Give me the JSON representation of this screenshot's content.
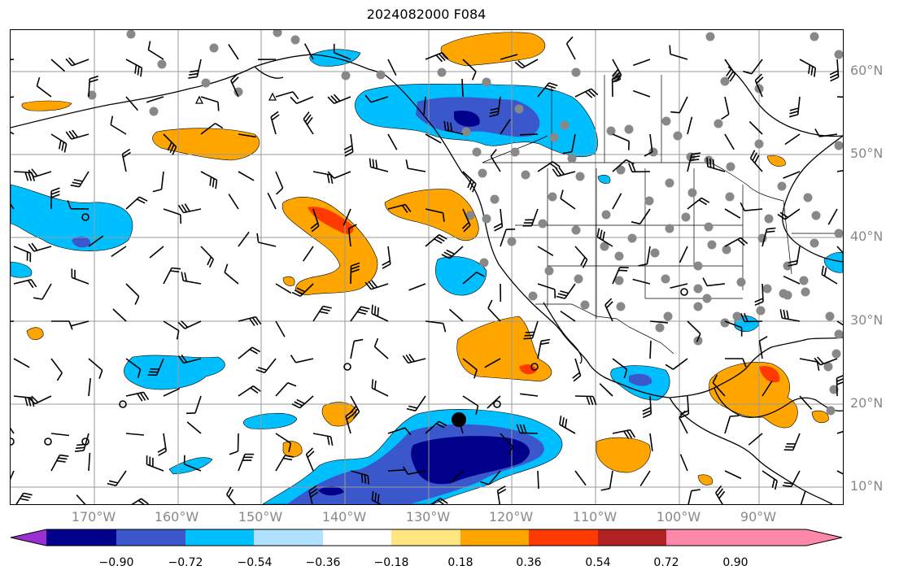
{
  "title": "2024082000 F084",
  "lat_labels": [
    "60°N",
    "50°N",
    "40°N",
    "30°N",
    "20°N",
    "10°N"
  ],
  "lon_labels": [
    "170°W",
    "160°W",
    "150°W",
    "140°W",
    "130°W",
    "120°W",
    "110°W",
    "100°W",
    "90°W"
  ],
  "colorbar": {
    "tick_labels": [
      "−0.90",
      "−0.72",
      "−0.54",
      "−0.36",
      "−0.18",
      "0.18",
      "0.36",
      "0.54",
      "0.72",
      "0.90"
    ],
    "colors": [
      "#9a30d0",
      "#00008b",
      "#3a57cc",
      "#00bfff",
      "#b0e2ff",
      "#ffffff",
      "#ffe680",
      "#ffa500",
      "#ff3a00",
      "#b22222",
      "#ff88aa"
    ]
  },
  "map": {
    "lon_range": [
      -180,
      -80.5
    ],
    "lat_range": [
      7.8,
      64.8
    ],
    "field_colors": {
      "neg_light": "#00bfff",
      "neg_mid": "#3a57cc",
      "neg_dark": "#00008b",
      "pos_light": "#ffa500",
      "pos_mid": "#ff3a00"
    }
  }
}
